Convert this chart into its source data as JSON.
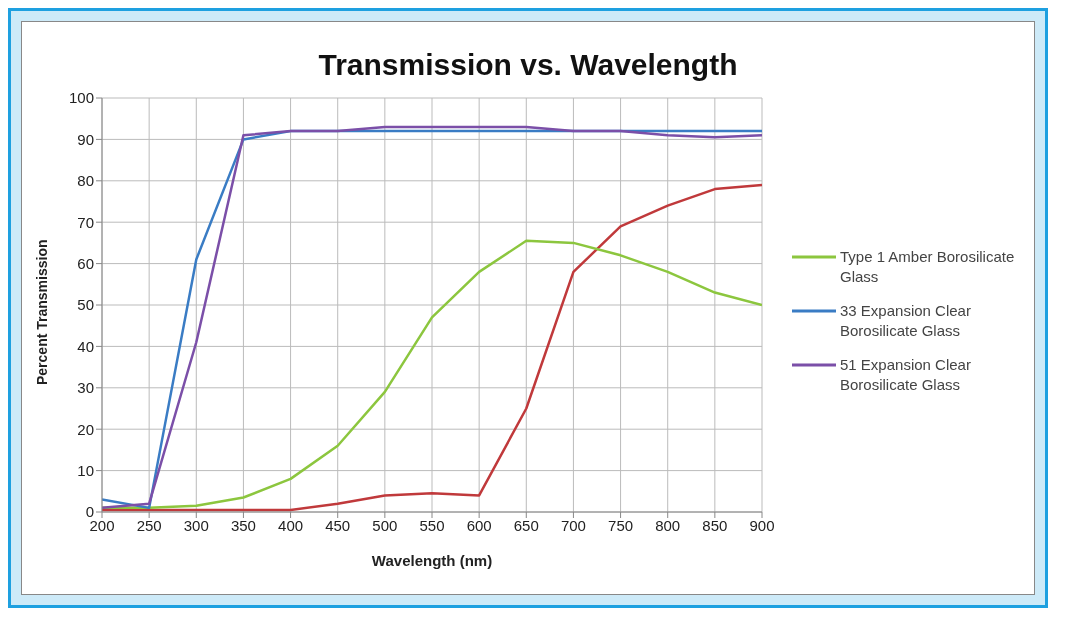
{
  "chart_data": {
    "type": "line",
    "title": "Transmission vs. Wavelength",
    "xlabel": "Wavelength (nm)",
    "ylabel": "Percent Transmission",
    "x": [
      200,
      250,
      300,
      350,
      400,
      450,
      500,
      550,
      600,
      650,
      700,
      750,
      800,
      850,
      900
    ],
    "xlim": [
      200,
      900
    ],
    "xticks": [
      200,
      250,
      300,
      350,
      400,
      450,
      500,
      550,
      600,
      650,
      700,
      750,
      800,
      850,
      900
    ],
    "ylim": [
      0,
      100
    ],
    "yticks": [
      0,
      10,
      20,
      30,
      40,
      50,
      60,
      70,
      80,
      90,
      100
    ],
    "grid": true,
    "legend": "right",
    "marker": "none",
    "line_style": "solid",
    "series": [
      {
        "color": "#c0393b",
        "values": [
          0.5,
          0.5,
          0.5,
          0.5,
          0.5,
          2,
          4,
          4.5,
          4,
          25,
          58,
          69,
          74,
          78,
          79
        ]
      },
      {
        "name": "Type 1 Amber Borosilicate Glass",
        "color": "#8cc63e",
        "values": [
          1,
          1,
          1.5,
          3.5,
          8,
          16,
          29,
          47,
          58,
          65.5,
          65,
          62,
          58,
          53,
          50
        ]
      },
      {
        "name": "33 Expansion Clear Borosilicate Glass",
        "color": "#3a7cc4",
        "values": [
          3,
          1,
          61,
          90,
          92,
          92,
          92,
          92,
          92,
          92,
          92,
          92,
          92,
          92,
          92
        ]
      },
      {
        "name": "51 Expansion Clear Borosilicate Glass",
        "color": "#7b4fa8",
        "values": [
          1,
          2,
          41,
          91,
          92,
          92,
          93,
          93,
          93,
          93,
          92,
          92,
          91,
          90.5,
          91
        ]
      }
    ]
  }
}
